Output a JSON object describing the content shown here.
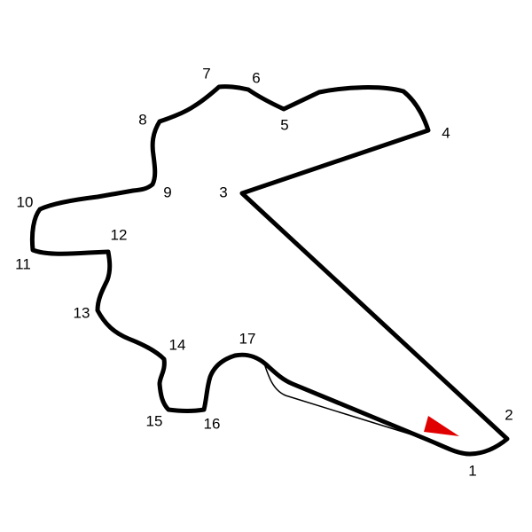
{
  "corners": [
    "1",
    "2",
    "3",
    "4",
    "5",
    "6",
    "7",
    "8",
    "9",
    "10",
    "11",
    "12",
    "13",
    "14",
    "15",
    "16",
    "17"
  ]
}
